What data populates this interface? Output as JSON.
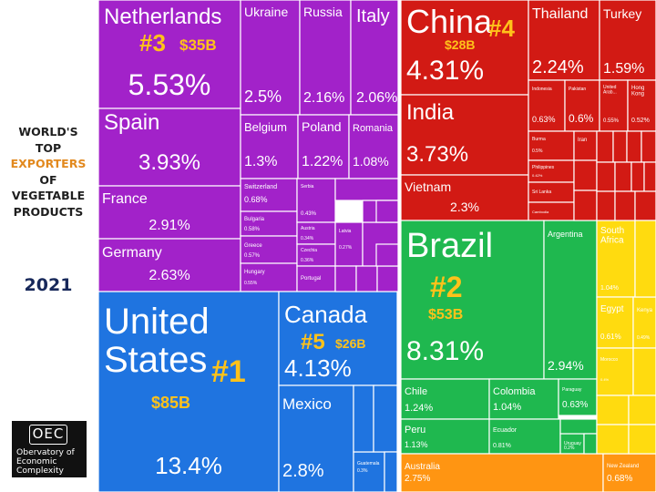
{
  "side": {
    "title_line1": "WORLD'S",
    "title_line2": "TOP",
    "title_line3": "EXPORTERS",
    "title_line4": "OF",
    "title_line5": "VEGETABLE",
    "title_line6": "PRODUCTS",
    "year": "2021"
  },
  "logo": {
    "mark": "OEC",
    "line1": "Obervatory of",
    "line2": "Economic",
    "line3": "Complexity"
  },
  "colors": {
    "europe": "#a222c9",
    "asia": "#d21a14",
    "south_america": "#1fb84f",
    "north_america": "#1f74e0",
    "africa": "#ffdb0f",
    "oceania": "#ff9512",
    "rank_label": "#ffc21a"
  },
  "chart_data": {
    "type": "treemap",
    "title": "WORLD'S TOP EXPORTERS OF VEGETABLE PRODUCTS",
    "year": "2021",
    "unit": "% of world exports",
    "groups": [
      {
        "region": "Europe",
        "color": "#a222c9",
        "items": [
          {
            "name": "Netherlands",
            "share": 5.53,
            "value_label": "$35B",
            "rank": "#3"
          },
          {
            "name": "Spain",
            "share": 3.93
          },
          {
            "name": "France",
            "share": 2.91
          },
          {
            "name": "Germany",
            "share": 2.63
          },
          {
            "name": "Ukraine",
            "share": 2.5
          },
          {
            "name": "Russia",
            "share": 2.16
          },
          {
            "name": "Italy",
            "share": 2.06
          },
          {
            "name": "Belgium",
            "share": 1.3
          },
          {
            "name": "Poland",
            "share": 1.22
          },
          {
            "name": "Romania",
            "share": 1.08
          },
          {
            "name": "Switzerland",
            "share": 0.68
          },
          {
            "name": "Bulgaria",
            "share": 0.58
          },
          {
            "name": "Greece",
            "share": 0.57
          },
          {
            "name": "Hungary",
            "share": 0.55
          },
          {
            "name": "Serbia",
            "share": 0.43
          },
          {
            "name": "Austria",
            "share": 0.34
          },
          {
            "name": "Czechia",
            "share": 0.36
          },
          {
            "name": "Latvia",
            "share": 0.27
          },
          {
            "name": "Portugal",
            "share": null
          }
        ]
      },
      {
        "region": "Asia",
        "color": "#d21a14",
        "items": [
          {
            "name": "China",
            "share": 4.31,
            "value_label": "$28B",
            "rank": "#4"
          },
          {
            "name": "India",
            "share": 3.73
          },
          {
            "name": "Vietnam",
            "share": 2.3
          },
          {
            "name": "Thailand",
            "share": 2.24
          },
          {
            "name": "Turkey",
            "share": 1.59
          },
          {
            "name": "Indonesia",
            "share": 0.63
          },
          {
            "name": "Pakistan",
            "share": 0.6
          },
          {
            "name": "United Arab Emirates",
            "share": 0.55
          },
          {
            "name": "Hong Kong",
            "share": 0.52
          },
          {
            "name": "Burma",
            "share": 0.5
          },
          {
            "name": "Iran",
            "share": null
          },
          {
            "name": "Philippines",
            "share": 0.42
          },
          {
            "name": "Sri Lanka",
            "share": null
          },
          {
            "name": "Cambodia",
            "share": null
          }
        ]
      },
      {
        "region": "South America",
        "color": "#1fb84f",
        "items": [
          {
            "name": "Brazil",
            "share": 8.31,
            "value_label": "$53B",
            "rank": "#2"
          },
          {
            "name": "Argentina",
            "share": 2.94
          },
          {
            "name": "Chile",
            "share": 1.24
          },
          {
            "name": "Colombia",
            "share": 1.04
          },
          {
            "name": "Paraguay",
            "share": 0.63
          },
          {
            "name": "Peru",
            "share": 1.13
          },
          {
            "name": "Ecuador",
            "share": 0.81
          },
          {
            "name": "Uruguay",
            "share": 0.2
          }
        ]
      },
      {
        "region": "North America",
        "color": "#1f74e0",
        "items": [
          {
            "name": "United States",
            "share": 13.4,
            "value_label": "$85B",
            "rank": "#1"
          },
          {
            "name": "Canada",
            "share": 4.13,
            "value_label": "$26B",
            "rank": "#5"
          },
          {
            "name": "Mexico",
            "share": 2.8
          },
          {
            "name": "Guatemala",
            "share": 0.3
          }
        ]
      },
      {
        "region": "Africa",
        "color": "#ffdb0f",
        "items": [
          {
            "name": "South Africa",
            "share": 1.04
          },
          {
            "name": "Egypt",
            "share": 0.61
          },
          {
            "name": "Kenya",
            "share": 0.49
          },
          {
            "name": "Morocco",
            "share": 0.4
          }
        ]
      },
      {
        "region": "Oceania",
        "color": "#ff9512",
        "items": [
          {
            "name": "Australia",
            "share": 2.75
          },
          {
            "name": "New Zealand",
            "share": 0.68
          }
        ]
      }
    ]
  }
}
